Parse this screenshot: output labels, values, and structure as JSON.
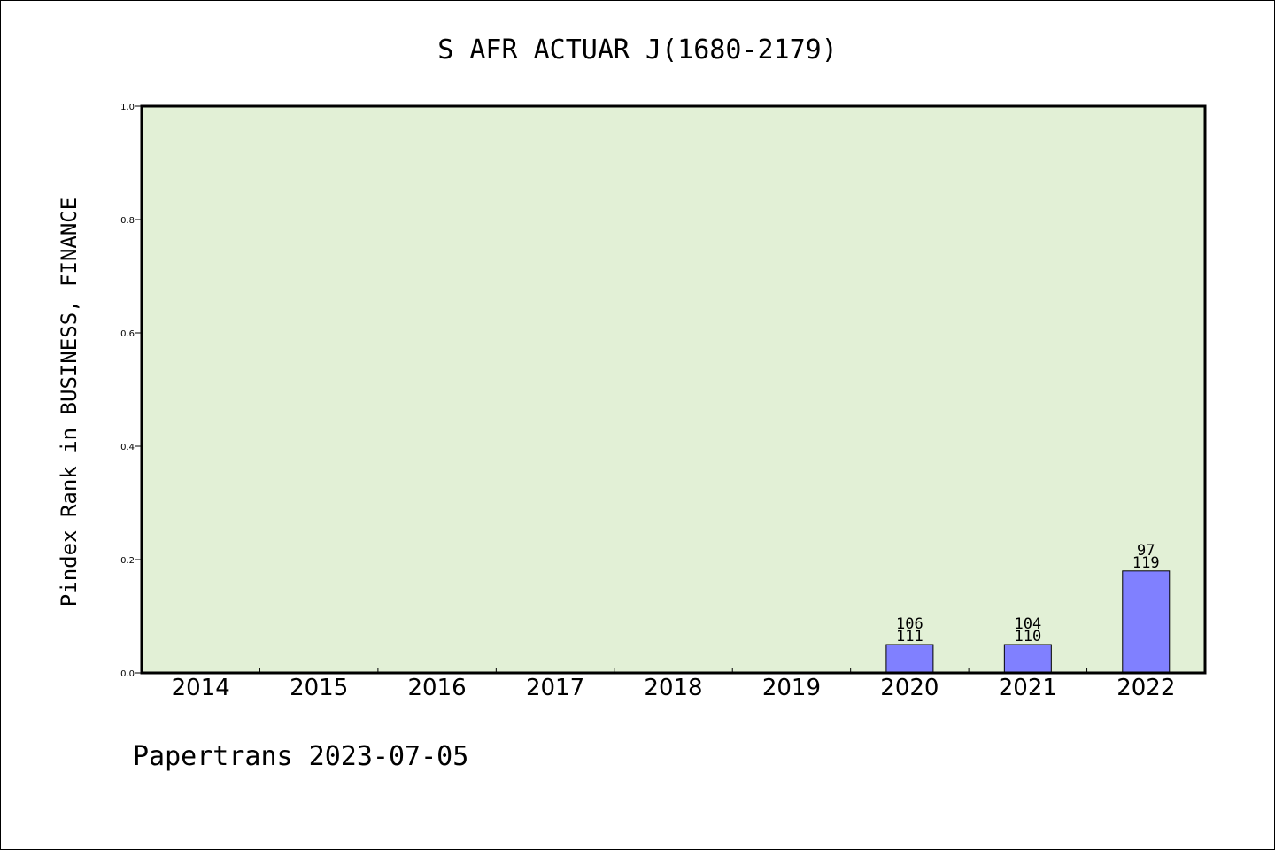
{
  "chart_data": {
    "type": "bar",
    "title": "S AFR ACTUAR J(1680-2179)",
    "ylabel": "Pindex Rank in BUSINESS, FINANCE",
    "xlabel": "",
    "ylim": [
      0,
      1.0
    ],
    "yticks": [
      "0.0",
      "0.2",
      "0.4",
      "0.6",
      "0.8",
      "1.0"
    ],
    "categories": [
      "2014",
      "2015",
      "2016",
      "2017",
      "2018",
      "2019",
      "2020",
      "2021",
      "2022"
    ],
    "values": [
      0,
      0,
      0,
      0,
      0,
      0,
      0.05,
      0.05,
      0.18
    ],
    "bar_labels": [
      null,
      null,
      null,
      null,
      null,
      null,
      {
        "top": "106",
        "bottom": "111"
      },
      {
        "top": "104",
        "bottom": "110"
      },
      {
        "top": "97",
        "bottom": "119"
      }
    ],
    "grid": false,
    "colors": {
      "plot_background": "#e2f0d6",
      "bar_fill": "#8080ff",
      "bar_stroke": "#000000",
      "axis": "#000000"
    }
  },
  "footer": {
    "text": "Papertrans 2023-07-05"
  }
}
